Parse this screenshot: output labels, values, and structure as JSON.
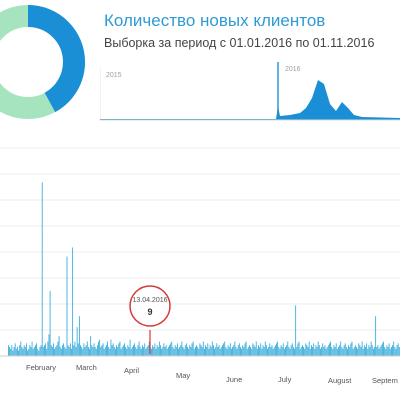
{
  "header": {
    "title": "Количество новых клиентов",
    "subtitle": "Выборка за период с 01.01.2016 по 01.11.2016"
  },
  "donut": {
    "colors": [
      "#1a8fd6",
      "#a6e3bf"
    ],
    "values": [
      0.42,
      0.58
    ]
  },
  "overview": {
    "year_labels": [
      "2015",
      "2016"
    ]
  },
  "chart_data": {
    "type": "bar",
    "color": "#31a9d9",
    "tooltip": {
      "date": "13.04.2016",
      "value": "9"
    },
    "months": [
      "February",
      "March",
      "April",
      "May",
      "June",
      "July",
      "August",
      "Septem"
    ],
    "ylim": [
      0,
      115
    ],
    "values": [
      6,
      5,
      4,
      6,
      3,
      5,
      7,
      4,
      5,
      3,
      6,
      8,
      5,
      4,
      6,
      5,
      7,
      3,
      4,
      6,
      5,
      8,
      4,
      5,
      6,
      7,
      4,
      3,
      5,
      6,
      96,
      5,
      6,
      7,
      4,
      8,
      12,
      36,
      6,
      5,
      7,
      4,
      5,
      6,
      8,
      11,
      5,
      4,
      6,
      7,
      5,
      4,
      55,
      6,
      5,
      7,
      4,
      60,
      6,
      8,
      5,
      16,
      7,
      22,
      6,
      5,
      4,
      7,
      5,
      6,
      8,
      5,
      4,
      11,
      6,
      5,
      7,
      5,
      4,
      6,
      8,
      9,
      5,
      6,
      7,
      4,
      5,
      6,
      8,
      5,
      4,
      9,
      6,
      7,
      5,
      4,
      6,
      5,
      7,
      8,
      4,
      5,
      6,
      7,
      5,
      4,
      6,
      5,
      9,
      4,
      5,
      6,
      7,
      5,
      4,
      6,
      8,
      5,
      4,
      6,
      5,
      7,
      4,
      5,
      6,
      8,
      5,
      4,
      6,
      5,
      7,
      4,
      6,
      5,
      8,
      6,
      4,
      5,
      7,
      5,
      6,
      4,
      5,
      6,
      7,
      8,
      5,
      4,
      6,
      5,
      7,
      4,
      5,
      6,
      8,
      5,
      4,
      6,
      7,
      5,
      4,
      6,
      5,
      7,
      8,
      4,
      5,
      6,
      5,
      4,
      7,
      6,
      5,
      8,
      4,
      6,
      5,
      7,
      4,
      6,
      5,
      8,
      6,
      4,
      5,
      7,
      5,
      6,
      4,
      5,
      6,
      7,
      8,
      5,
      4,
      6,
      5,
      7,
      4,
      5,
      6,
      8,
      5,
      4,
      6,
      7,
      5,
      4,
      6,
      5,
      7,
      8,
      4,
      5,
      6,
      5,
      4,
      7,
      6,
      5,
      8,
      4,
      6,
      5,
      7,
      4,
      6,
      5,
      8,
      6,
      4,
      5,
      7,
      5,
      6,
      4,
      5,
      6,
      7,
      8,
      5,
      4,
      6,
      5,
      7,
      4,
      5,
      6,
      8,
      5,
      4,
      6,
      7,
      5,
      4,
      28,
      5,
      7,
      8,
      4,
      5,
      6,
      5,
      4,
      7,
      6,
      5,
      8,
      4,
      6,
      5,
      7,
      4,
      6,
      5,
      8,
      6,
      4,
      5,
      7,
      5,
      6,
      4,
      5,
      6,
      7,
      8,
      5,
      4,
      6,
      5,
      7,
      4,
      5,
      6,
      8,
      5,
      4,
      6,
      7,
      5,
      4,
      6,
      5,
      7,
      8,
      4,
      5,
      6,
      5,
      4,
      7,
      6,
      5,
      8,
      4,
      6,
      5,
      7,
      4,
      6,
      5,
      8,
      6,
      4,
      5,
      22,
      5,
      6,
      4,
      5,
      6,
      7,
      8,
      5,
      4,
      6,
      5,
      7,
      4,
      5,
      6,
      8,
      5,
      4,
      6,
      7,
      5
    ]
  }
}
